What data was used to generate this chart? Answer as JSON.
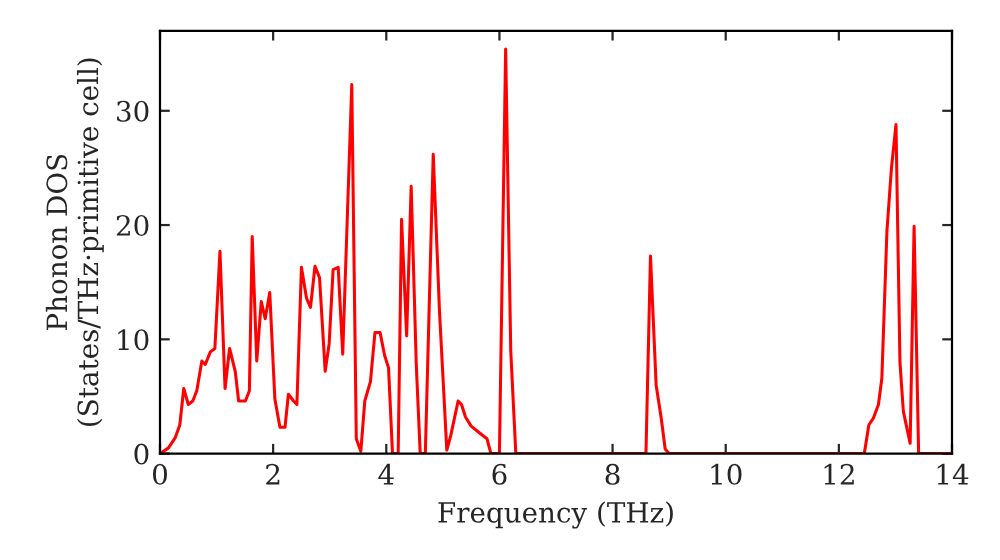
{
  "chart_data": {
    "type": "line",
    "xlabel": "Frequency (THz)",
    "ylabel": "Phonon DOS\n(States/THz·primitive cell)",
    "xlim": [
      0,
      14
    ],
    "ylim": [
      0,
      37
    ],
    "xticks": [
      0,
      2,
      4,
      6,
      8,
      10,
      12,
      14
    ],
    "yticks": [
      0,
      10,
      20,
      30
    ],
    "grid": false,
    "legend": false,
    "marker": "none",
    "line_style": "solid",
    "series": [
      {
        "color": "#ff0000",
        "x": [
          0.0,
          0.15,
          0.27,
          0.35,
          0.42,
          0.5,
          0.58,
          0.65,
          0.74,
          0.8,
          0.89,
          0.97,
          1.06,
          1.15,
          1.23,
          1.33,
          1.39,
          1.51,
          1.58,
          1.63,
          1.71,
          1.79,
          1.86,
          1.94,
          2.03,
          2.12,
          2.21,
          2.27,
          2.36,
          2.42,
          2.5,
          2.59,
          2.66,
          2.74,
          2.82,
          2.92,
          2.99,
          3.06,
          3.15,
          3.23,
          3.39,
          3.47,
          3.55,
          3.62,
          3.72,
          3.8,
          3.89,
          3.97,
          4.04,
          4.11,
          4.21,
          4.27,
          4.36,
          4.44,
          4.53,
          4.6,
          4.69,
          4.83,
          4.94,
          5.07,
          5.14,
          5.27,
          5.33,
          5.4,
          5.5,
          5.65,
          5.78,
          5.85,
          6.0,
          6.11,
          6.2,
          6.29,
          8.59,
          8.67,
          8.77,
          8.86,
          8.93,
          9.0,
          12.45,
          12.53,
          12.61,
          12.7,
          12.76,
          12.85,
          12.93,
          13.01,
          13.08,
          13.14,
          13.26,
          13.33,
          13.41,
          14.0
        ],
        "values": [
          0,
          0.5,
          1.4,
          2.5,
          5.7,
          4.3,
          4.6,
          5.5,
          8.1,
          7.8,
          8.9,
          9.2,
          17.7,
          5.7,
          9.2,
          7.2,
          4.6,
          4.6,
          5.5,
          19.0,
          8.1,
          13.3,
          11.8,
          14.1,
          4.8,
          2.3,
          2.3,
          5.2,
          4.6,
          4.3,
          16.3,
          13.6,
          12.8,
          16.4,
          15.4,
          7.2,
          9.6,
          16.1,
          16.3,
          8.7,
          32.3,
          1.3,
          0.2,
          4.6,
          6.3,
          10.6,
          10.6,
          8.6,
          7.5,
          0,
          0,
          20.5,
          10.3,
          23.4,
          7.8,
          0,
          0,
          26.2,
          12.5,
          0.3,
          1.6,
          4.6,
          4.3,
          3.2,
          2.4,
          1.8,
          1.3,
          0,
          0,
          35.4,
          9.0,
          0,
          0,
          17.3,
          6.0,
          3.1,
          0.4,
          0,
          0,
          2.5,
          3.1,
          4.3,
          6.6,
          19.5,
          25.0,
          28.8,
          8.0,
          3.7,
          0.9,
          19.9,
          0,
          0
        ]
      }
    ]
  }
}
